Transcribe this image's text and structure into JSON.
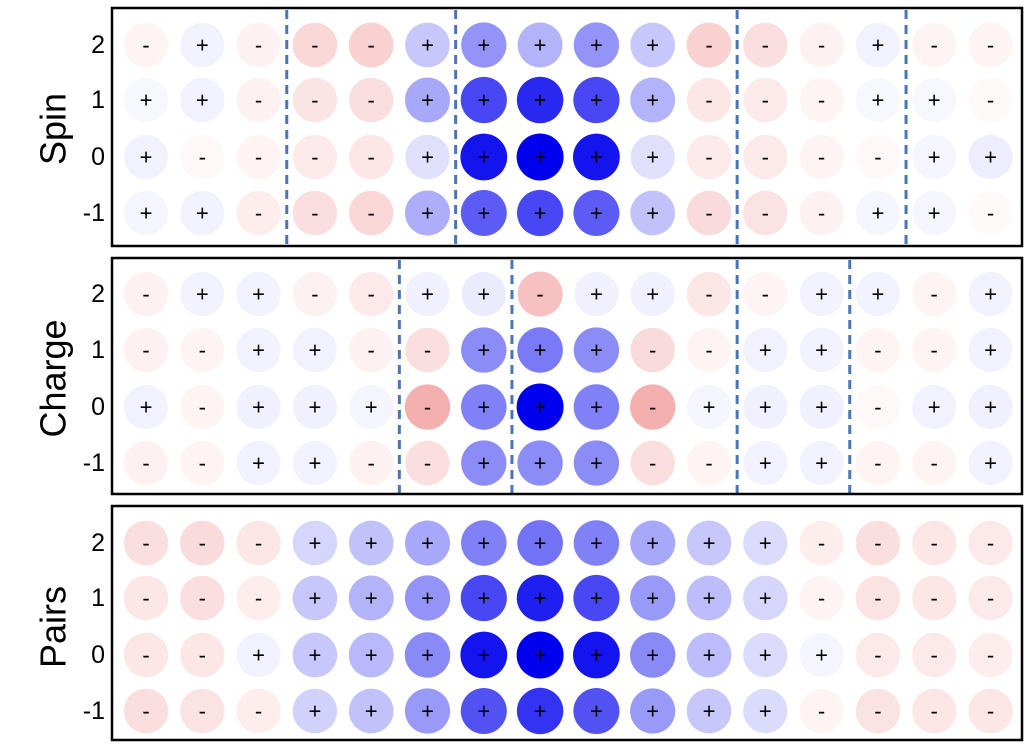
{
  "chart_data": [
    {
      "type": "heatmap",
      "ylabel": "Spin",
      "y_ticks": [
        "2",
        "1",
        "0",
        "-1"
      ],
      "signs": [
        [
          "-",
          "+",
          "-",
          "-",
          "-",
          "+",
          "+",
          "+",
          "+",
          "+",
          "-",
          "-",
          "-",
          "+",
          "-",
          "-"
        ],
        [
          "+",
          "+",
          "-",
          "-",
          "-",
          "+",
          "+",
          "+",
          "+",
          "+",
          "-",
          "-",
          "-",
          "+",
          "+",
          "-"
        ],
        [
          "+",
          "-",
          "-",
          "-",
          "-",
          "+",
          "+",
          "+",
          "+",
          "+",
          "-",
          "-",
          "-",
          "-",
          "+",
          "+"
        ],
        [
          "+",
          "+",
          "-",
          "-",
          "-",
          "+",
          "+",
          "+",
          "+",
          "+",
          "-",
          "-",
          "-",
          "+",
          "+",
          "-"
        ]
      ],
      "values": [
        [
          -0.06,
          0.05,
          -0.08,
          -0.22,
          -0.26,
          0.22,
          0.42,
          0.3,
          0.42,
          0.22,
          -0.26,
          -0.18,
          -0.08,
          0.05,
          -0.06,
          -0.06
        ],
        [
          0.03,
          0.05,
          -0.08,
          -0.15,
          -0.18,
          0.34,
          0.72,
          0.84,
          0.72,
          0.3,
          -0.14,
          -0.12,
          -0.06,
          0.03,
          0.03,
          -0.03
        ],
        [
          0.05,
          -0.04,
          -0.06,
          -0.12,
          -0.14,
          0.12,
          0.92,
          1.0,
          0.92,
          0.12,
          -0.12,
          -0.12,
          -0.06,
          -0.04,
          0.04,
          0.07
        ],
        [
          0.04,
          0.05,
          -0.1,
          -0.18,
          -0.22,
          0.32,
          0.64,
          0.72,
          0.64,
          0.24,
          -0.2,
          -0.16,
          -0.08,
          0.04,
          0.04,
          -0.03
        ]
      ],
      "dividers_after_column": [
        2,
        5,
        10,
        13
      ]
    },
    {
      "type": "heatmap",
      "ylabel": "Charge",
      "y_ticks": [
        "2",
        "1",
        "0",
        "-1"
      ],
      "signs": [
        [
          "-",
          "+",
          "+",
          "-",
          "-",
          "+",
          "+",
          "-",
          "+",
          "+",
          "-",
          "-",
          "+",
          "+",
          "-",
          "+"
        ],
        [
          "-",
          "-",
          "+",
          "+",
          "-",
          "-",
          "+",
          "+",
          "+",
          "-",
          "-",
          "+",
          "+",
          "-",
          "-",
          "+"
        ],
        [
          "+",
          "-",
          "+",
          "+",
          "+",
          "-",
          "+",
          "+",
          "+",
          "-",
          "+",
          "+",
          "+",
          "-",
          "+",
          "+"
        ],
        [
          "-",
          "-",
          "+",
          "+",
          "-",
          "-",
          "+",
          "+",
          "+",
          "-",
          "-",
          "+",
          "+",
          "-",
          "-",
          "+"
        ]
      ],
      "values": [
        [
          -0.08,
          0.05,
          0.05,
          -0.08,
          -0.12,
          0.06,
          0.08,
          -0.35,
          0.06,
          0.06,
          -0.14,
          -0.06,
          0.05,
          0.05,
          -0.06,
          0.05
        ],
        [
          -0.08,
          -0.06,
          0.05,
          0.05,
          -0.08,
          -0.18,
          0.45,
          0.52,
          0.45,
          -0.2,
          -0.06,
          0.05,
          0.05,
          -0.06,
          -0.06,
          0.05
        ],
        [
          0.05,
          -0.06,
          0.06,
          0.06,
          0.04,
          -0.45,
          0.5,
          1.0,
          0.5,
          -0.45,
          0.04,
          0.06,
          0.06,
          -0.04,
          0.05,
          0.06
        ],
        [
          -0.08,
          -0.06,
          0.05,
          0.05,
          -0.08,
          -0.18,
          0.45,
          0.45,
          0.45,
          -0.18,
          -0.06,
          0.05,
          0.05,
          -0.06,
          -0.06,
          0.05
        ]
      ],
      "dividers_after_column": [
        4,
        6,
        10,
        12
      ]
    },
    {
      "type": "heatmap",
      "ylabel": "Pairs",
      "y_ticks": [
        "2",
        "1",
        "0",
        "-1"
      ],
      "signs": [
        [
          "-",
          "-",
          "-",
          "+",
          "+",
          "+",
          "+",
          "+",
          "+",
          "+",
          "+",
          "+",
          "-",
          "-",
          "-",
          "-"
        ],
        [
          "-",
          "-",
          "-",
          "+",
          "+",
          "+",
          "+",
          "+",
          "+",
          "+",
          "+",
          "+",
          "-",
          "-",
          "-",
          "-"
        ],
        [
          "-",
          "-",
          "+",
          "+",
          "+",
          "+",
          "+",
          "+",
          "+",
          "+",
          "+",
          "+",
          "+",
          "-",
          "-",
          "-"
        ],
        [
          "-",
          "-",
          "-",
          "+",
          "+",
          "+",
          "+",
          "+",
          "+",
          "+",
          "+",
          "+",
          "-",
          "-",
          "-",
          "-"
        ]
      ],
      "values": [
        [
          -0.18,
          -0.2,
          -0.14,
          0.16,
          0.24,
          0.34,
          0.5,
          0.55,
          0.5,
          0.34,
          0.22,
          0.14,
          -0.1,
          -0.18,
          -0.14,
          -0.12
        ],
        [
          -0.14,
          -0.18,
          -0.1,
          0.22,
          0.3,
          0.42,
          0.72,
          0.88,
          0.72,
          0.4,
          0.26,
          0.16,
          -0.06,
          -0.16,
          -0.14,
          -0.12
        ],
        [
          -0.14,
          -0.14,
          0.05,
          0.22,
          0.28,
          0.46,
          0.92,
          1.0,
          0.92,
          0.46,
          0.26,
          0.14,
          0.04,
          -0.12,
          -0.12,
          -0.1
        ],
        [
          -0.18,
          -0.16,
          -0.1,
          0.18,
          0.24,
          0.4,
          0.68,
          0.8,
          0.68,
          0.4,
          0.22,
          0.14,
          -0.06,
          -0.16,
          -0.14,
          -0.14
        ]
      ],
      "dividers_after_column": []
    }
  ],
  "colors": {
    "positive": "#0000ee",
    "negative": "#f09090",
    "divider": "#4a76b8"
  }
}
